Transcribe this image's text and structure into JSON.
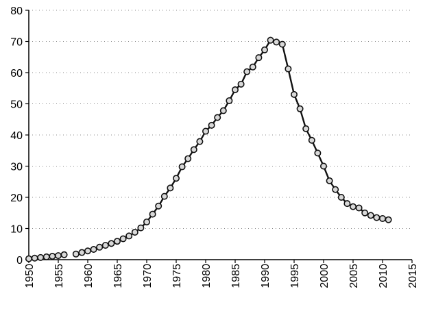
{
  "chart_data": {
    "type": "line",
    "title": "",
    "xlabel": "",
    "ylabel": "",
    "xlim": [
      1950,
      2015
    ],
    "ylim": [
      0,
      80
    ],
    "x_ticks": [
      "1950",
      "1955",
      "1960",
      "1965",
      "1970",
      "1975",
      "1980",
      "1985",
      "1990",
      "1995",
      "2000",
      "2005",
      "2010",
      "2015"
    ],
    "y_ticks": [
      "0",
      "10",
      "20",
      "30",
      "40",
      "50",
      "60",
      "70",
      "80"
    ],
    "grid": "horizontal dotted",
    "legend": "none",
    "colors": {
      "line": "#111111",
      "marker_fill": "#d9d9d9",
      "grid": "#8a8a8a"
    },
    "series": [
      {
        "segments": [
          {
            "x": [
              1950,
              1951,
              1952,
              1953,
              1954,
              1955,
              1956
            ],
            "y": [
              0.3,
              0.5,
              0.7,
              0.9,
              1.1,
              1.3,
              1.6
            ]
          },
          {
            "x": [
              1958,
              1959,
              1960,
              1961,
              1962,
              1963,
              1964,
              1965,
              1966,
              1967,
              1968,
              1969,
              1970,
              1971,
              1972,
              1973,
              1974,
              1975,
              1976,
              1977,
              1978,
              1979,
              1980,
              1981,
              1982,
              1983,
              1984,
              1985,
              1986,
              1987,
              1988,
              1989,
              1990,
              1991,
              1992,
              1993,
              1994,
              1995,
              1996,
              1997,
              1998,
              1999,
              2000,
              2001,
              2002,
              2003,
              2004,
              2005,
              2006,
              2007,
              2008,
              2009,
              2010,
              2011
            ],
            "y": [
              1.8,
              2.3,
              2.8,
              3.3,
              4.0,
              4.6,
              5.2,
              5.9,
              6.7,
              7.6,
              8.8,
              10.2,
              12.1,
              14.6,
              17.2,
              20.3,
              23.0,
              26.1,
              29.8,
              32.4,
              35.3,
              37.9,
              41.2,
              43.1,
              45.6,
              47.8,
              51.0,
              54.5,
              56.3,
              60.3,
              61.8,
              64.8,
              67.3,
              70.4,
              69.8,
              69.1,
              61.2,
              53.0,
              48.4,
              42.0,
              38.3,
              34.2,
              30.0,
              25.3,
              22.5,
              20.0,
              18.0,
              17.0,
              16.6,
              15.0,
              14.2,
              13.5,
              13.2,
              12.8
            ]
          }
        ]
      }
    ]
  }
}
